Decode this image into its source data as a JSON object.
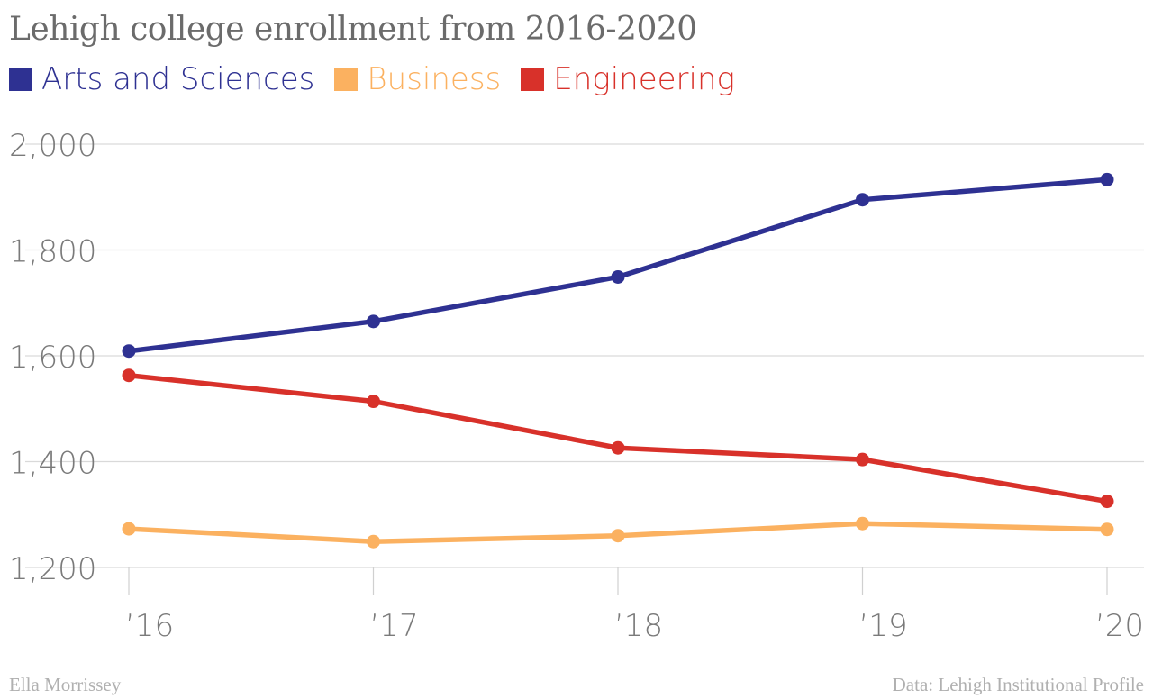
{
  "chart_data": {
    "type": "line",
    "title": "Lehigh college enrollment from 2016-2020",
    "categories": [
      "’16",
      "’17",
      "’18",
      "’19",
      "’20"
    ],
    "series": [
      {
        "name": "Arts and Sciences",
        "color": "#2e3192",
        "values": [
          1609,
          1665,
          1749,
          1895,
          1933
        ]
      },
      {
        "name": "Business",
        "color": "#fbb160",
        "values": [
          1273,
          1249,
          1260,
          1283,
          1272
        ]
      },
      {
        "name": "Engineering",
        "color": "#d8312a",
        "values": [
          1563,
          1514,
          1426,
          1404,
          1325
        ]
      }
    ],
    "ylim": [
      1200,
      2000
    ],
    "yticks": [
      2000,
      1800,
      1600,
      1400,
      1200
    ],
    "ytick_labels": [
      "2,000",
      "1,800",
      "1,600",
      "1,400",
      "1,200"
    ],
    "xlabel": "",
    "ylabel": "",
    "grid": true,
    "legend_position": "top-left"
  },
  "footer": {
    "credit": "Ella Morrissey",
    "source": "Data: Lehigh Institutional Profile"
  }
}
